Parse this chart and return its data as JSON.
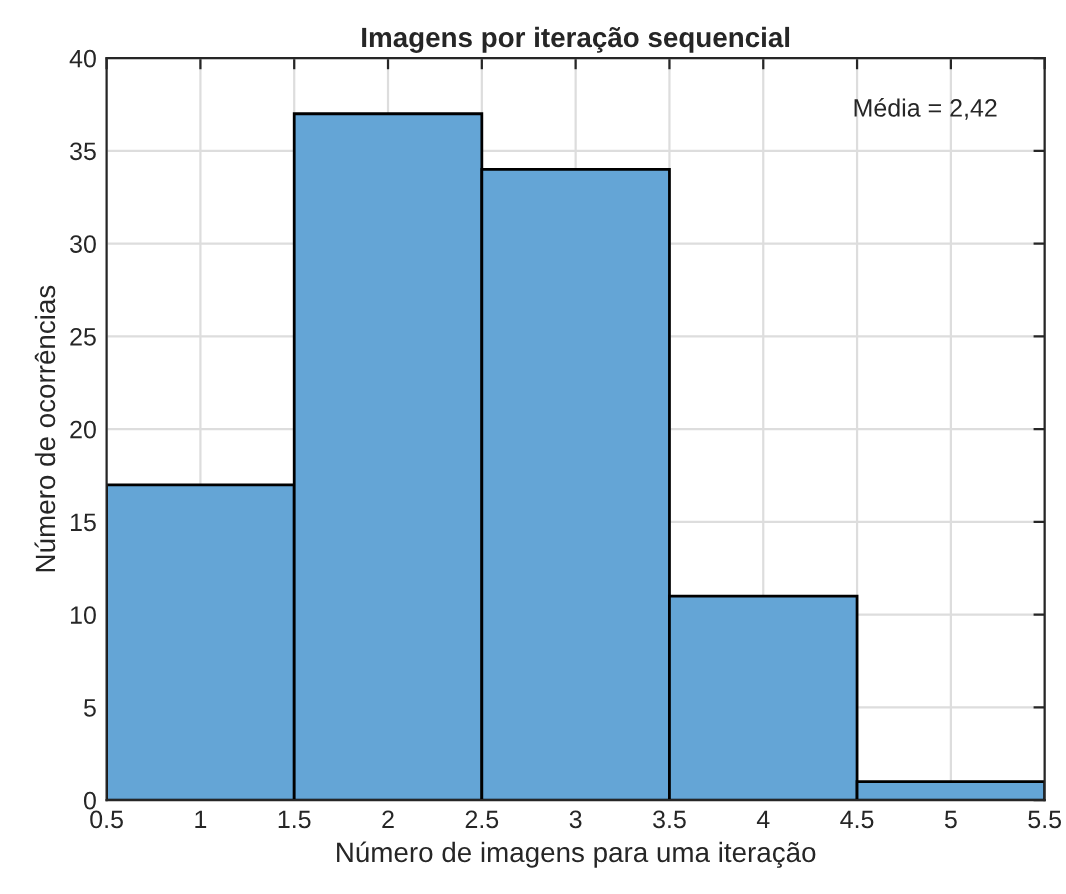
{
  "chart_data": {
    "type": "histogram",
    "title": "Imagens por iteração sequencial",
    "xlabel": "Número de imagens para uma iteração",
    "ylabel": "Número de ocorrências",
    "bins": [
      0.5,
      1.5,
      2.5,
      3.5,
      4.5,
      5.5
    ],
    "values": [
      17,
      37,
      34,
      11,
      1
    ],
    "color": "#64a5d6",
    "xlim": [
      0.5,
      5.5
    ],
    "xticks": [
      0.5,
      1,
      1.5,
      2,
      2.5,
      3,
      3.5,
      4,
      4.5,
      5,
      5.5
    ],
    "ylim": [
      0,
      40
    ],
    "yticks": [
      0,
      5,
      10,
      15,
      20,
      25,
      30,
      35,
      40
    ],
    "grid": true,
    "annotations": [
      "Média = 2,42"
    ]
  }
}
